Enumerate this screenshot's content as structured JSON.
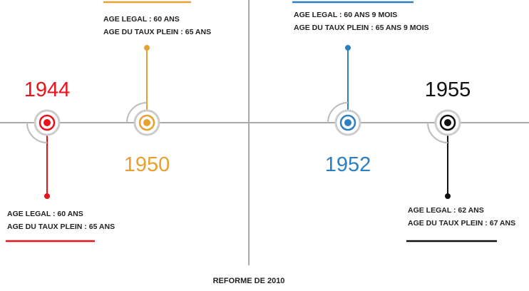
{
  "nodes": [
    {
      "year": "1944",
      "lines": [
        "AGE LEGAL : 60 ANS",
        "AGE DU TAUX PLEIN : 65 ANS"
      ]
    },
    {
      "year": "1950",
      "lines": [
        "AGE LEGAL : 60 ANS",
        "AGE DU TAUX PLEIN : 65 ANS"
      ]
    },
    {
      "year": "1952",
      "lines": [
        "AGE LEGAL : 60 ANS 9 MOIS",
        "AGE DU TAUX PLEIN : 65 ANS 9 MOIS"
      ]
    },
    {
      "year": "1955",
      "lines": [
        "AGE LEGAL : 62 ANS",
        "AGE DU TAUX PLEIN : 67 ANS"
      ]
    }
  ],
  "footer": "REFORME DE 2010"
}
